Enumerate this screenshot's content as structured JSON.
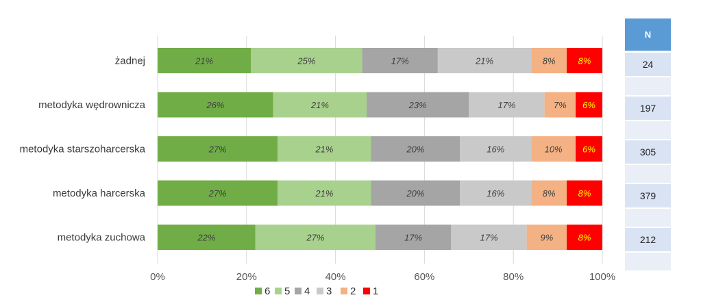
{
  "chart_data": {
    "type": "bar",
    "orientation": "horizontal",
    "stacked": true,
    "percent": true,
    "categories": [
      "żadnej",
      "metodyka wędrownicza",
      "metodyka starszoharcerska",
      "metodyka harcerska",
      "metodyka zuchowa"
    ],
    "series": [
      {
        "name": "6",
        "color": "#70ad47",
        "values": [
          21,
          26,
          27,
          27,
          22
        ],
        "labels": [
          "21%",
          "26%",
          "27%",
          "27%",
          "22%"
        ]
      },
      {
        "name": "5",
        "color": "#a9d18e",
        "values": [
          25,
          21,
          21,
          21,
          27
        ],
        "labels": [
          "25%",
          "21%",
          "21%",
          "21%",
          "27%"
        ]
      },
      {
        "name": "4",
        "color": "#a5a5a5",
        "values": [
          17,
          23,
          20,
          20,
          17
        ],
        "labels": [
          "17%",
          "23%",
          "20%",
          "20%",
          "17%"
        ]
      },
      {
        "name": "3",
        "color": "#c9c9c9",
        "values": [
          21,
          17,
          16,
          16,
          17
        ],
        "labels": [
          "21%",
          "17%",
          "16%",
          "16%",
          "17%"
        ]
      },
      {
        "name": "2",
        "color": "#f4b183",
        "values": [
          8,
          7,
          10,
          8,
          9
        ],
        "labels": [
          "8%",
          "7%",
          "10%",
          "8%",
          "9%"
        ]
      },
      {
        "name": "1",
        "color": "#ff0000",
        "values": [
          8,
          6,
          6,
          8,
          8
        ],
        "labels": [
          "8%",
          "6%",
          "6%",
          "8%",
          "8%"
        ]
      }
    ],
    "xlim": [
      0,
      100
    ],
    "xticks": [
      "0%",
      "20%",
      "40%",
      "60%",
      "80%",
      "100%"
    ],
    "grid": true,
    "legend_position": "bottom",
    "n_column": {
      "header": "N",
      "values": [
        "24",
        "197",
        "305",
        "379",
        "212"
      ],
      "header_color": "#5b9bd5",
      "cell_color": "#dae3f3",
      "cell_alt_color": "#e9eef7"
    }
  }
}
